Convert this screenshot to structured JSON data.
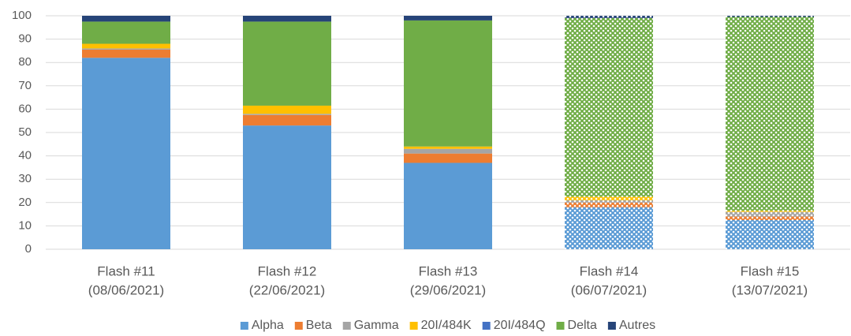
{
  "chart_data": {
    "type": "stacked_bar",
    "categories": [
      [
        "Flash #11",
        "(08/06/2021)"
      ],
      [
        "Flash #12",
        "(22/06/2021)"
      ],
      [
        "Flash #13",
        "(29/06/2021)"
      ],
      [
        "Flash #14",
        "(06/07/2021)"
      ],
      [
        "Flash #15",
        "(13/07/2021)"
      ]
    ],
    "patterned": [
      false,
      false,
      false,
      true,
      true
    ],
    "series": [
      {
        "name": "Alpha",
        "color": "#5b9bd5",
        "values": [
          82,
          53,
          37,
          18,
          12.5
        ]
      },
      {
        "name": "Beta",
        "color": "#ed7d31",
        "values": [
          3.5,
          4.5,
          4,
          2,
          1.5
        ]
      },
      {
        "name": "Gamma",
        "color": "#a5a5a5",
        "values": [
          0.5,
          0.5,
          2,
          1,
          2
        ]
      },
      {
        "name": "20I/484K",
        "color": "#ffc000",
        "values": [
          2,
          3.5,
          1,
          1.5,
          0.5
        ]
      },
      {
        "name": "20I/484Q",
        "color": "#4472c4",
        "values": [
          0,
          0,
          0,
          0,
          0
        ]
      },
      {
        "name": "Delta",
        "color": "#70ad47",
        "values": [
          9.5,
          36,
          54,
          76.5,
          83
        ]
      },
      {
        "name": "Autres",
        "color": "#264478",
        "values": [
          2.5,
          2.5,
          2,
          1,
          0.5
        ]
      }
    ],
    "ylim": [
      0,
      100
    ],
    "yticks": [
      0,
      10,
      20,
      30,
      40,
      50,
      60,
      70,
      80,
      90,
      100
    ],
    "grid": true,
    "legend": "bottom"
  }
}
